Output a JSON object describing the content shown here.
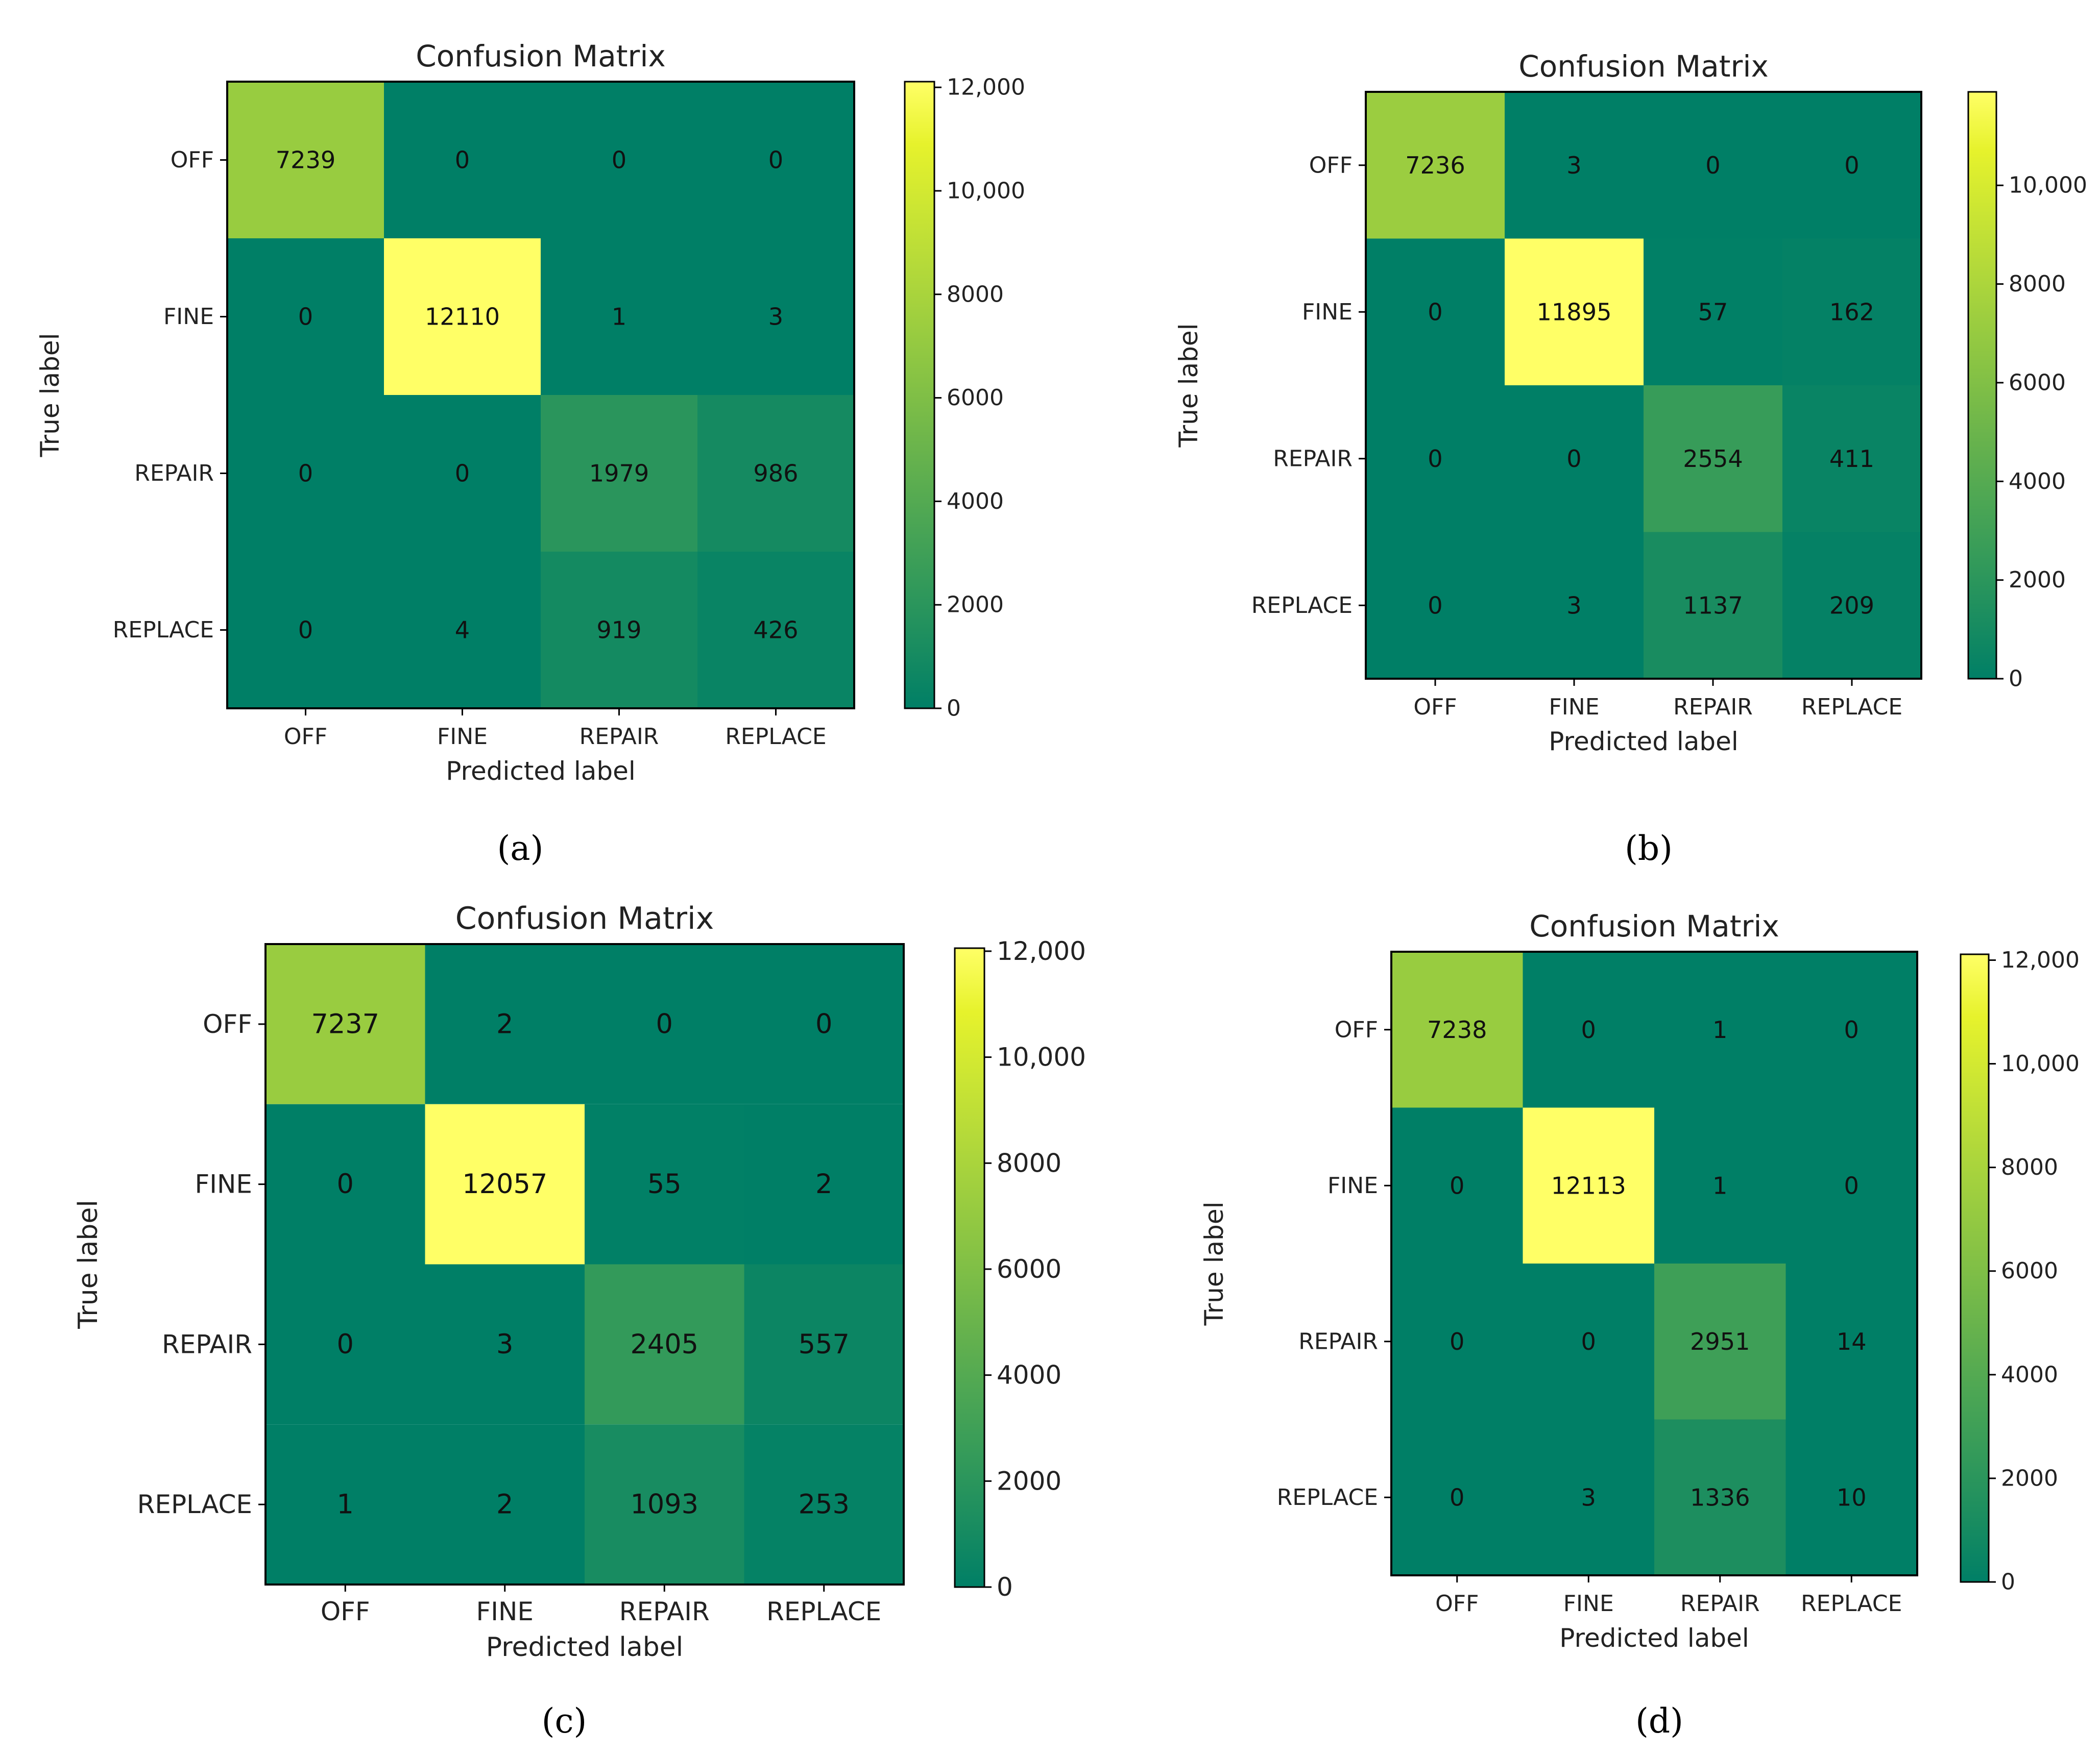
{
  "figure": {
    "captions": [
      "(a)",
      "(b)",
      "(c)",
      "(d)"
    ]
  },
  "chart_data": [
    {
      "type": "heatmap",
      "panel": "a",
      "title": "Confusion Matrix",
      "xlabel": "Predicted label",
      "ylabel": "True label",
      "x_categories": [
        "OFF",
        "FINE",
        "REPAIR",
        "REPLACE"
      ],
      "y_categories": [
        "OFF",
        "FINE",
        "REPAIR",
        "REPLACE"
      ],
      "values": [
        [
          7239,
          0,
          0,
          0
        ],
        [
          0,
          12110,
          1,
          3
        ],
        [
          0,
          0,
          1979,
          986
        ],
        [
          0,
          4,
          919,
          426
        ]
      ],
      "colorbar": {
        "range": [
          0,
          12110
        ],
        "tick_values": [
          0,
          2000,
          4000,
          6000,
          8000,
          10000,
          12000
        ],
        "tick_labels": [
          "0",
          "2000",
          "4000",
          "6000",
          "8000",
          "10,000",
          "12,000"
        ]
      }
    },
    {
      "type": "heatmap",
      "panel": "b",
      "title": "Confusion Matrix",
      "xlabel": "Predicted label",
      "ylabel": "True label",
      "x_categories": [
        "OFF",
        "FINE",
        "REPAIR",
        "REPLACE"
      ],
      "y_categories": [
        "OFF",
        "FINE",
        "REPAIR",
        "REPLACE"
      ],
      "values": [
        [
          7236,
          3,
          0,
          0
        ],
        [
          0,
          11895,
          57,
          162
        ],
        [
          0,
          0,
          2554,
          411
        ],
        [
          0,
          3,
          1137,
          209
        ]
      ],
      "colorbar": {
        "range": [
          0,
          11895
        ],
        "tick_values": [
          0,
          2000,
          4000,
          6000,
          8000,
          10000
        ],
        "tick_labels": [
          "0",
          "2000",
          "4000",
          "6000",
          "8000",
          "10,000"
        ]
      }
    },
    {
      "type": "heatmap",
      "panel": "c",
      "title": "Confusion Matrix",
      "xlabel": "Predicted label",
      "ylabel": "True label",
      "x_categories": [
        "OFF",
        "FINE",
        "REPAIR",
        "REPLACE"
      ],
      "y_categories": [
        "OFF",
        "FINE",
        "REPAIR",
        "REPLACE"
      ],
      "values": [
        [
          7237,
          2,
          0,
          0
        ],
        [
          0,
          12057,
          55,
          2
        ],
        [
          0,
          3,
          2405,
          557
        ],
        [
          1,
          2,
          1093,
          253
        ]
      ],
      "colorbar": {
        "range": [
          0,
          12057
        ],
        "tick_values": [
          0,
          2000,
          4000,
          6000,
          8000,
          10000,
          12000
        ],
        "tick_labels": [
          "0",
          "2000",
          "4000",
          "6000",
          "8000",
          "10,000",
          "12,000"
        ]
      }
    },
    {
      "type": "heatmap",
      "panel": "d",
      "title": "Confusion Matrix",
      "xlabel": "Predicted label",
      "ylabel": "True label",
      "x_categories": [
        "OFF",
        "FINE",
        "REPAIR",
        "REPLACE"
      ],
      "y_categories": [
        "OFF",
        "FINE",
        "REPAIR",
        "REPLACE"
      ],
      "values": [
        [
          7238,
          0,
          1,
          0
        ],
        [
          0,
          12113,
          1,
          0
        ],
        [
          0,
          0,
          2951,
          14
        ],
        [
          0,
          3,
          1336,
          10
        ]
      ],
      "colorbar": {
        "range": [
          0,
          12113
        ],
        "tick_values": [
          0,
          2000,
          4000,
          6000,
          8000,
          10000,
          12000
        ],
        "tick_labels": [
          "0",
          "2000",
          "4000",
          "6000",
          "8000",
          "10,000",
          "12,000"
        ]
      }
    }
  ],
  "colormap": [
    "#007f66",
    "#1a8d60",
    "#339a5a",
    "#4ca654",
    "#66b24d",
    "#80bf46",
    "#99cc40",
    "#b3d93a",
    "#cce633",
    "#e6f22c",
    "#ffff66"
  ]
}
